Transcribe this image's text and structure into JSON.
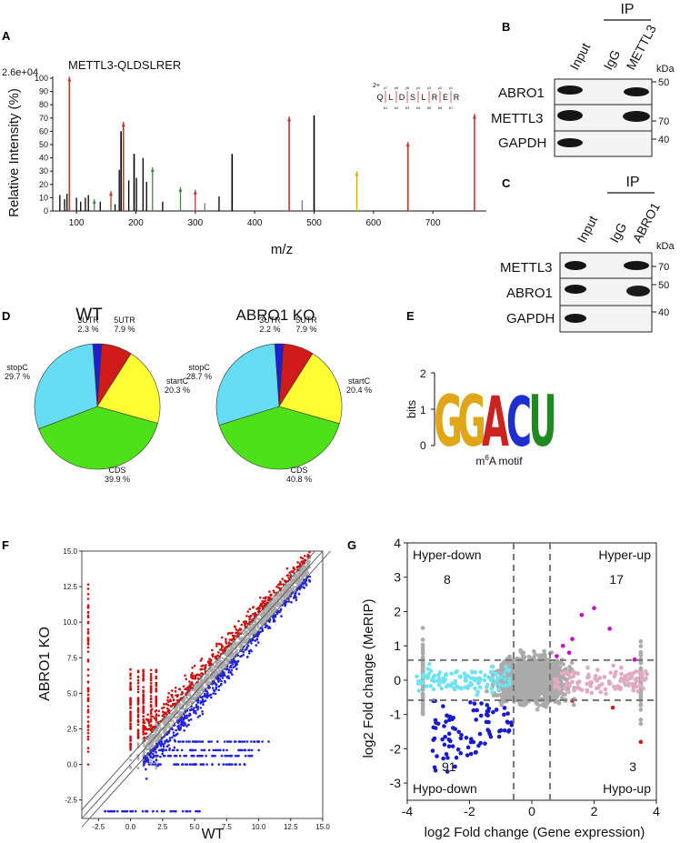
{
  "panels": {
    "A": {
      "letter": "A",
      "peptide": "METTL3-QLDSLRER",
      "scale": "2.6e+04",
      "ylabel": "Relative Intensity (%)",
      "xlabel": "m/z",
      "charge": "2+",
      "sequence": [
        "Q",
        "L",
        "D",
        "S",
        "L",
        "R",
        "E",
        "R"
      ],
      "y_ions": [
        "y7",
        "y6",
        "y5",
        "y4",
        "y3",
        "y2",
        "y1"
      ],
      "b_ions": [
        "b1",
        "b2",
        "b3",
        "b4",
        "b5",
        "b6",
        "b7"
      ]
    },
    "B": {
      "letter": "B",
      "ip_label": "IP",
      "lanes": [
        "Input",
        "IgG",
        "METTL3"
      ],
      "kda_label": "kDa",
      "rows": [
        {
          "name": "ABRO1",
          "marker": "50"
        },
        {
          "name": "METTL3",
          "marker": "70"
        },
        {
          "name": "GAPDH",
          "marker": "40"
        }
      ]
    },
    "C": {
      "letter": "C",
      "ip_label": "IP",
      "lanes": [
        "Input",
        "IgG",
        "ABRO1"
      ],
      "kda_label": "kDa",
      "rows": [
        {
          "name": "METTL3",
          "marker": "70"
        },
        {
          "name": "ABRO1",
          "marker": "50"
        },
        {
          "name": "GAPDH",
          "marker": "40"
        }
      ]
    },
    "D": {
      "letter": "D"
    },
    "E": {
      "letter": "E",
      "ylabel": "bits",
      "motif": "GGACU",
      "motif_label_pre": "m",
      "motif_label_sup": "6",
      "motif_label_post": "A motif"
    },
    "F": {
      "letter": "F"
    },
    "G": {
      "letter": "G"
    }
  },
  "chart_data": [
    {
      "type": "bar",
      "title": "METTL3-QLDSLRER",
      "xlabel": "m/z",
      "ylabel": "Relative Intensity (%)",
      "xlim": [
        60,
        790
      ],
      "ylim": [
        0,
        100
      ],
      "xticks": [
        100,
        200,
        300,
        400,
        500,
        600,
        700
      ],
      "yticks": [
        0,
        10,
        20,
        30,
        40,
        50,
        60,
        70,
        80,
        90,
        100
      ],
      "peaks": [
        {
          "mz": 72,
          "i": 12,
          "c": "#000000"
        },
        {
          "mz": 80,
          "i": 9,
          "c": "#000000"
        },
        {
          "mz": 84,
          "i": 13,
          "c": "#000000"
        },
        {
          "mz": 88,
          "i": 101,
          "c": "#c0392b"
        },
        {
          "mz": 100,
          "i": 10,
          "c": "#000000"
        },
        {
          "mz": 107,
          "i": 7,
          "c": "#000000"
        },
        {
          "mz": 115,
          "i": 10,
          "c": "#000000"
        },
        {
          "mz": 120,
          "i": 12,
          "c": "#000000"
        },
        {
          "mz": 130,
          "i": 9,
          "c": "#3a8f3a"
        },
        {
          "mz": 140,
          "i": 7,
          "c": "#000000"
        },
        {
          "mz": 158,
          "i": 15,
          "c": "#c0392b"
        },
        {
          "mz": 165,
          "i": 5,
          "c": "#000000"
        },
        {
          "mz": 172,
          "i": 31,
          "c": "#000000"
        },
        {
          "mz": 175,
          "i": 60,
          "c": "#000000"
        },
        {
          "mz": 179,
          "i": 67,
          "c": "#c0392b"
        },
        {
          "mz": 188,
          "i": 23,
          "c": "#000000"
        },
        {
          "mz": 197,
          "i": 43,
          "c": "#000000"
        },
        {
          "mz": 201,
          "i": 25,
          "c": "#000000"
        },
        {
          "mz": 212,
          "i": 40,
          "c": "#000000"
        },
        {
          "mz": 218,
          "i": 22,
          "c": "#000000"
        },
        {
          "mz": 228,
          "i": 33,
          "c": "#3a8f3a"
        },
        {
          "mz": 245,
          "i": 7,
          "c": "#000000"
        },
        {
          "mz": 275,
          "i": 18,
          "c": "#3a8f3a"
        },
        {
          "mz": 300,
          "i": 16,
          "c": "#c0392b"
        },
        {
          "mz": 316,
          "i": 6,
          "c": "#777777"
        },
        {
          "mz": 340,
          "i": 11,
          "c": "#000000"
        },
        {
          "mz": 362,
          "i": 43,
          "c": "#000000"
        },
        {
          "mz": 458,
          "i": 71,
          "c": "#c0392b"
        },
        {
          "mz": 480,
          "i": 8,
          "c": "#777777"
        },
        {
          "mz": 500,
          "i": 72,
          "c": "#000000"
        },
        {
          "mz": 572,
          "i": 30,
          "c": "#d4ac0d"
        },
        {
          "mz": 658,
          "i": 52,
          "c": "#c0392b"
        },
        {
          "mz": 770,
          "i": 73,
          "c": "#c0392b"
        }
      ]
    },
    {
      "type": "pie",
      "title": "WT",
      "slices": [
        {
          "label": "3UTR",
          "value": 2.3,
          "pct": "2.3 %",
          "color": "#1f1fcf"
        },
        {
          "label": "5UTR",
          "value": 7.9,
          "pct": "7.9 %",
          "color": "#d11a1a"
        },
        {
          "label": "startC",
          "value": 20.3,
          "pct": "20.3 %",
          "color": "#ffff33"
        },
        {
          "label": "CDS",
          "value": 39.9,
          "pct": "39.9 %",
          "color": "#4ee11a"
        },
        {
          "label": "stopC",
          "value": 29.7,
          "pct": "29.7 %",
          "color": "#66ddf3"
        }
      ]
    },
    {
      "type": "pie",
      "title": "ABRO1 KO",
      "slices": [
        {
          "label": "3UTR",
          "value": 2.2,
          "pct": "2.2 %",
          "color": "#1f1fcf"
        },
        {
          "label": "5UTR",
          "value": 7.9,
          "pct": "7.9 %",
          "color": "#d11a1a"
        },
        {
          "label": "startC",
          "value": 20.4,
          "pct": "20.4 %",
          "color": "#ffff33"
        },
        {
          "label": "CDS",
          "value": 40.8,
          "pct": "40.8 %",
          "color": "#4ee11a"
        },
        {
          "label": "stopC",
          "value": 28.7,
          "pct": "28.7 %",
          "color": "#66ddf3"
        }
      ]
    },
    {
      "type": "scatter",
      "xlabel": "WT",
      "ylabel": "ABRO1 KO",
      "xlim": [
        -3.8,
        15
      ],
      "ylim": [
        -3.8,
        15
      ],
      "xticks": [
        "-2.5",
        "0.0",
        "2.5",
        "5.0",
        "7.5",
        "10.0",
        "12.5",
        "15.0"
      ],
      "yticks": [
        "-2.5",
        "0.0",
        "2.5",
        "5.0",
        "7.5",
        "10.0",
        "12.5",
        "15.0"
      ],
      "groups": [
        {
          "name": "up",
          "color": "#cc1111"
        },
        {
          "name": "down",
          "color": "#2222dd"
        },
        {
          "name": "unchanged",
          "color": "#aaaaaa"
        }
      ]
    },
    {
      "type": "scatter",
      "xlabel": "log2 Fold change (Gene expression)",
      "ylabel": "log2 Fold change (MeRIP)",
      "xlim": [
        -4,
        4
      ],
      "ylim": [
        -3.5,
        4
      ],
      "xticks": [
        "-4",
        "-2",
        "0",
        "2",
        "4"
      ],
      "yticks": [
        "-3",
        "-2",
        "-1",
        "0",
        "1",
        "2",
        "3",
        "4"
      ],
      "thresholds": {
        "x": 0.585,
        "y": 0.585
      },
      "quadrants": [
        {
          "name": "Hyper-down",
          "count": "8",
          "color": "#cc00cc"
        },
        {
          "name": "Hyper-up",
          "count": "17",
          "color": "#cc00cc"
        },
        {
          "name": "Hypo-down",
          "count": "91",
          "color": "#1a1acc"
        },
        {
          "name": "Hypo-up",
          "count": "3",
          "color": "#bb2222"
        }
      ]
    }
  ]
}
